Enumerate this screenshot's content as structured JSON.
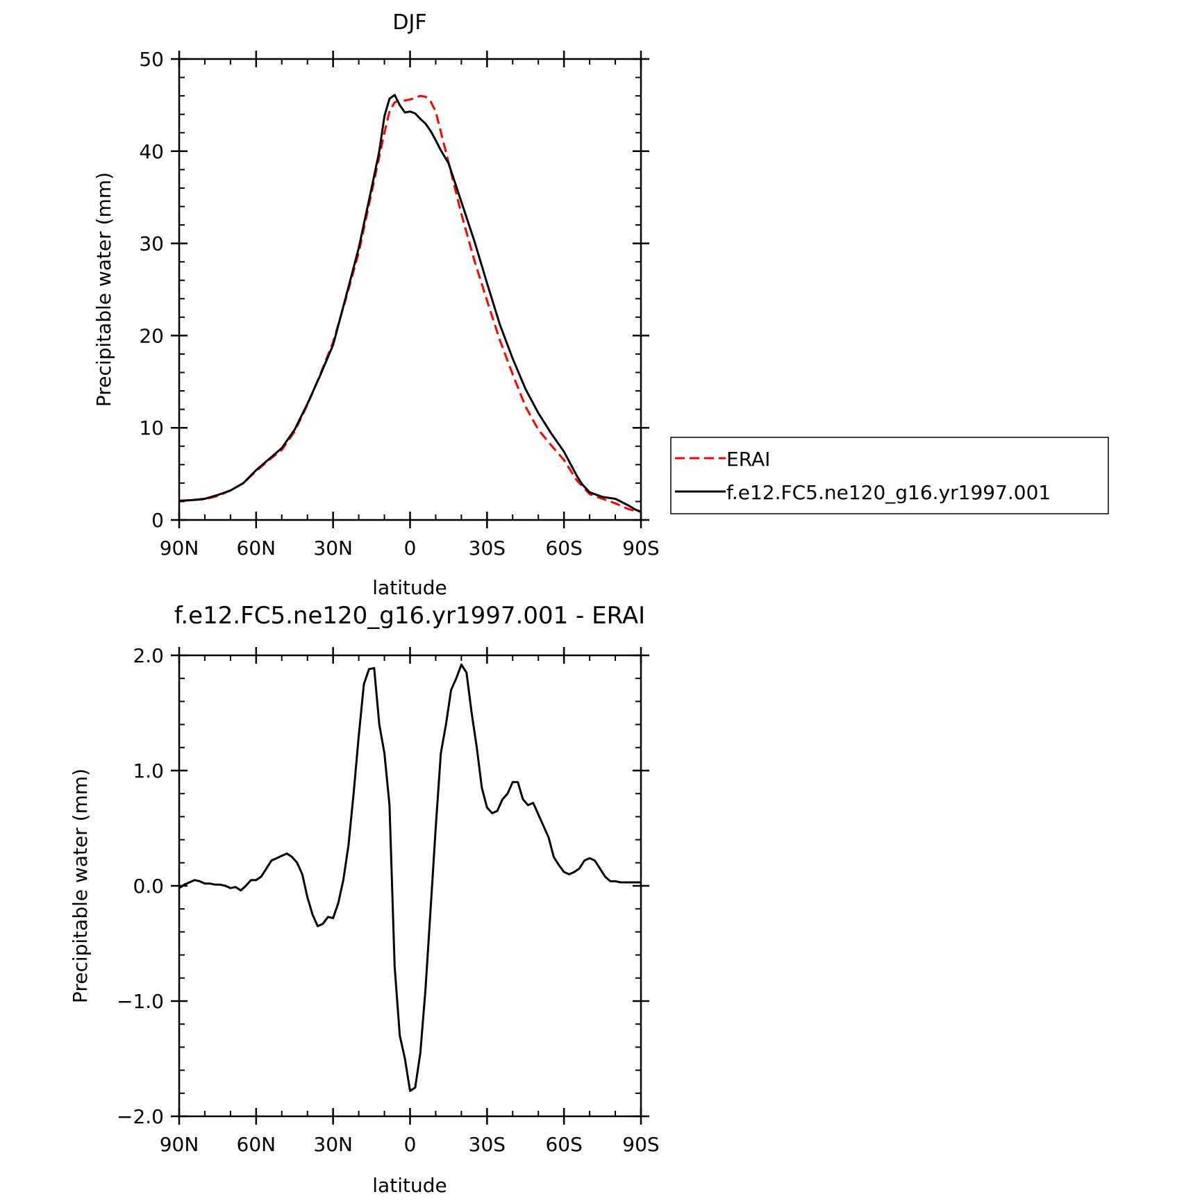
{
  "chart_data": [
    {
      "type": "line",
      "title": "DJF",
      "xlabel": "latitude",
      "ylabel": "Precipitable water (mm)",
      "x_ticks": [
        "90N",
        "60N",
        "30N",
        "0",
        "30S",
        "60S",
        "90S"
      ],
      "xlim": [
        -90,
        90
      ],
      "ylim": [
        0,
        50
      ],
      "y_ticks": [
        "0",
        "10",
        "20",
        "30",
        "40",
        "50"
      ],
      "y_tick_values": [
        0,
        10,
        20,
        30,
        40,
        50
      ],
      "y_minor_step": 2,
      "grid": false,
      "legend": "right, outside plot",
      "series": [
        {
          "name": "ERAI",
          "color": "#ff0000",
          "dash": "dashed",
          "x": [
            -90,
            -85,
            -80,
            -75,
            -70,
            -65,
            -60,
            -55,
            -50,
            -45,
            -40,
            -35,
            -30,
            -25,
            -20,
            -15,
            -10,
            -8,
            -6,
            -4,
            -2,
            0,
            2,
            4,
            6,
            8,
            10,
            15,
            20,
            25,
            30,
            35,
            40,
            45,
            50,
            55,
            60,
            65,
            67,
            70,
            75,
            80,
            85,
            88,
            90
          ],
          "y": [
            2.1,
            2.15,
            2.25,
            2.6,
            3.2,
            4.0,
            5.3,
            6.5,
            7.6,
            9.6,
            12.5,
            15.8,
            19.3,
            24.0,
            29.0,
            35.5,
            42.0,
            44.3,
            45.3,
            45.5,
            45.5,
            45.6,
            45.8,
            46.0,
            45.9,
            45.4,
            44.3,
            38.8,
            33.2,
            28.2,
            23.8,
            19.5,
            15.8,
            12.3,
            9.8,
            8.1,
            6.5,
            4.3,
            3.7,
            2.8,
            2.3,
            1.8,
            1.2,
            0.95,
            0.9
          ]
        },
        {
          "name": "f.e12.FC5.ne120_g16.yr1997.001",
          "color": "#000000",
          "dash": "solid",
          "x": [
            -90,
            -85,
            -80,
            -75,
            -70,
            -65,
            -60,
            -55,
            -50,
            -45,
            -40,
            -35,
            -30,
            -25,
            -20,
            -15,
            -12,
            -10,
            -8,
            -6,
            -4,
            -2,
            0,
            2,
            4,
            6,
            8,
            10,
            12,
            15,
            20,
            25,
            30,
            35,
            40,
            45,
            50,
            55,
            60,
            65,
            67,
            70,
            75,
            80,
            85,
            88,
            90
          ],
          "y": [
            2.05,
            2.15,
            2.3,
            2.7,
            3.2,
            4.0,
            5.4,
            6.6,
            7.8,
            9.8,
            12.6,
            15.7,
            19.0,
            24.2,
            29.5,
            36.0,
            40.0,
            43.8,
            45.7,
            46.1,
            45.0,
            44.2,
            44.3,
            44.1,
            43.5,
            43.0,
            42.2,
            41.2,
            40.1,
            38.7,
            34.5,
            30.3,
            25.7,
            21.2,
            17.5,
            14.2,
            11.6,
            9.4,
            7.4,
            4.8,
            3.9,
            3.0,
            2.5,
            2.3,
            1.6,
            1.1,
            0.9
          ]
        }
      ]
    },
    {
      "type": "line",
      "title": "f.e12.FC5.ne120_g16.yr1997.001 - ERAI",
      "xlabel": "latitude",
      "ylabel": "Precipitable water (mm)",
      "x_ticks": [
        "90N",
        "60N",
        "30N",
        "0",
        "30S",
        "60S",
        "90S"
      ],
      "xlim": [
        -90,
        90
      ],
      "ylim": [
        -2.0,
        2.0
      ],
      "y_ticks": [
        "-2.0",
        "-1.0",
        "0.0",
        "1.0",
        "2.0"
      ],
      "y_tick_values": [
        -2.0,
        -1.0,
        0.0,
        1.0,
        2.0
      ],
      "y_minor_step": 0.2,
      "grid": false,
      "series": [
        {
          "name": "",
          "color": "#000000",
          "dash": "solid",
          "x": [
            -90,
            -88,
            -86,
            -84,
            -82,
            -80,
            -78,
            -76,
            -74,
            -72,
            -70,
            -68,
            -66,
            -64,
            -62,
            -60,
            -58,
            -56,
            -54,
            -52,
            -50,
            -48,
            -46,
            -44,
            -42,
            -40,
            -38,
            -36,
            -34,
            -32,
            -30,
            -28,
            -26,
            -24,
            -22,
            -20,
            -18,
            -16,
            -14,
            -12,
            -10,
            -8,
            -6,
            -4,
            -2,
            0,
            2,
            4,
            6,
            8,
            10,
            12,
            14,
            16,
            18,
            20,
            22,
            24,
            26,
            28,
            30,
            32,
            34,
            36,
            38,
            40,
            42,
            44,
            46,
            48,
            50,
            52,
            54,
            56,
            58,
            60,
            62,
            64,
            66,
            68,
            70,
            72,
            74,
            76,
            78,
            80,
            82,
            84,
            86,
            88,
            90
          ],
          "y": [
            -0.02,
            0.01,
            0.03,
            0.05,
            0.04,
            0.02,
            0.02,
            0.01,
            0.01,
            0.0,
            -0.02,
            -0.01,
            -0.04,
            0.0,
            0.05,
            0.05,
            0.08,
            0.15,
            0.22,
            0.24,
            0.26,
            0.28,
            0.25,
            0.2,
            0.1,
            -0.1,
            -0.25,
            -0.35,
            -0.33,
            -0.27,
            -0.28,
            -0.15,
            0.05,
            0.35,
            0.8,
            1.3,
            1.75,
            1.88,
            1.89,
            1.4,
            1.15,
            0.7,
            -0.7,
            -1.3,
            -1.5,
            -1.78,
            -1.75,
            -1.45,
            -0.9,
            -0.2,
            0.5,
            1.15,
            1.4,
            1.7,
            1.8,
            1.92,
            1.85,
            1.5,
            1.2,
            0.85,
            0.68,
            0.63,
            0.65,
            0.75,
            0.8,
            0.9,
            0.9,
            0.75,
            0.7,
            0.72,
            0.62,
            0.52,
            0.42,
            0.25,
            0.18,
            0.12,
            0.1,
            0.12,
            0.15,
            0.22,
            0.24,
            0.22,
            0.15,
            0.08,
            0.04,
            0.04,
            0.03,
            0.03,
            0.03,
            0.03,
            0.03
          ]
        }
      ]
    }
  ]
}
